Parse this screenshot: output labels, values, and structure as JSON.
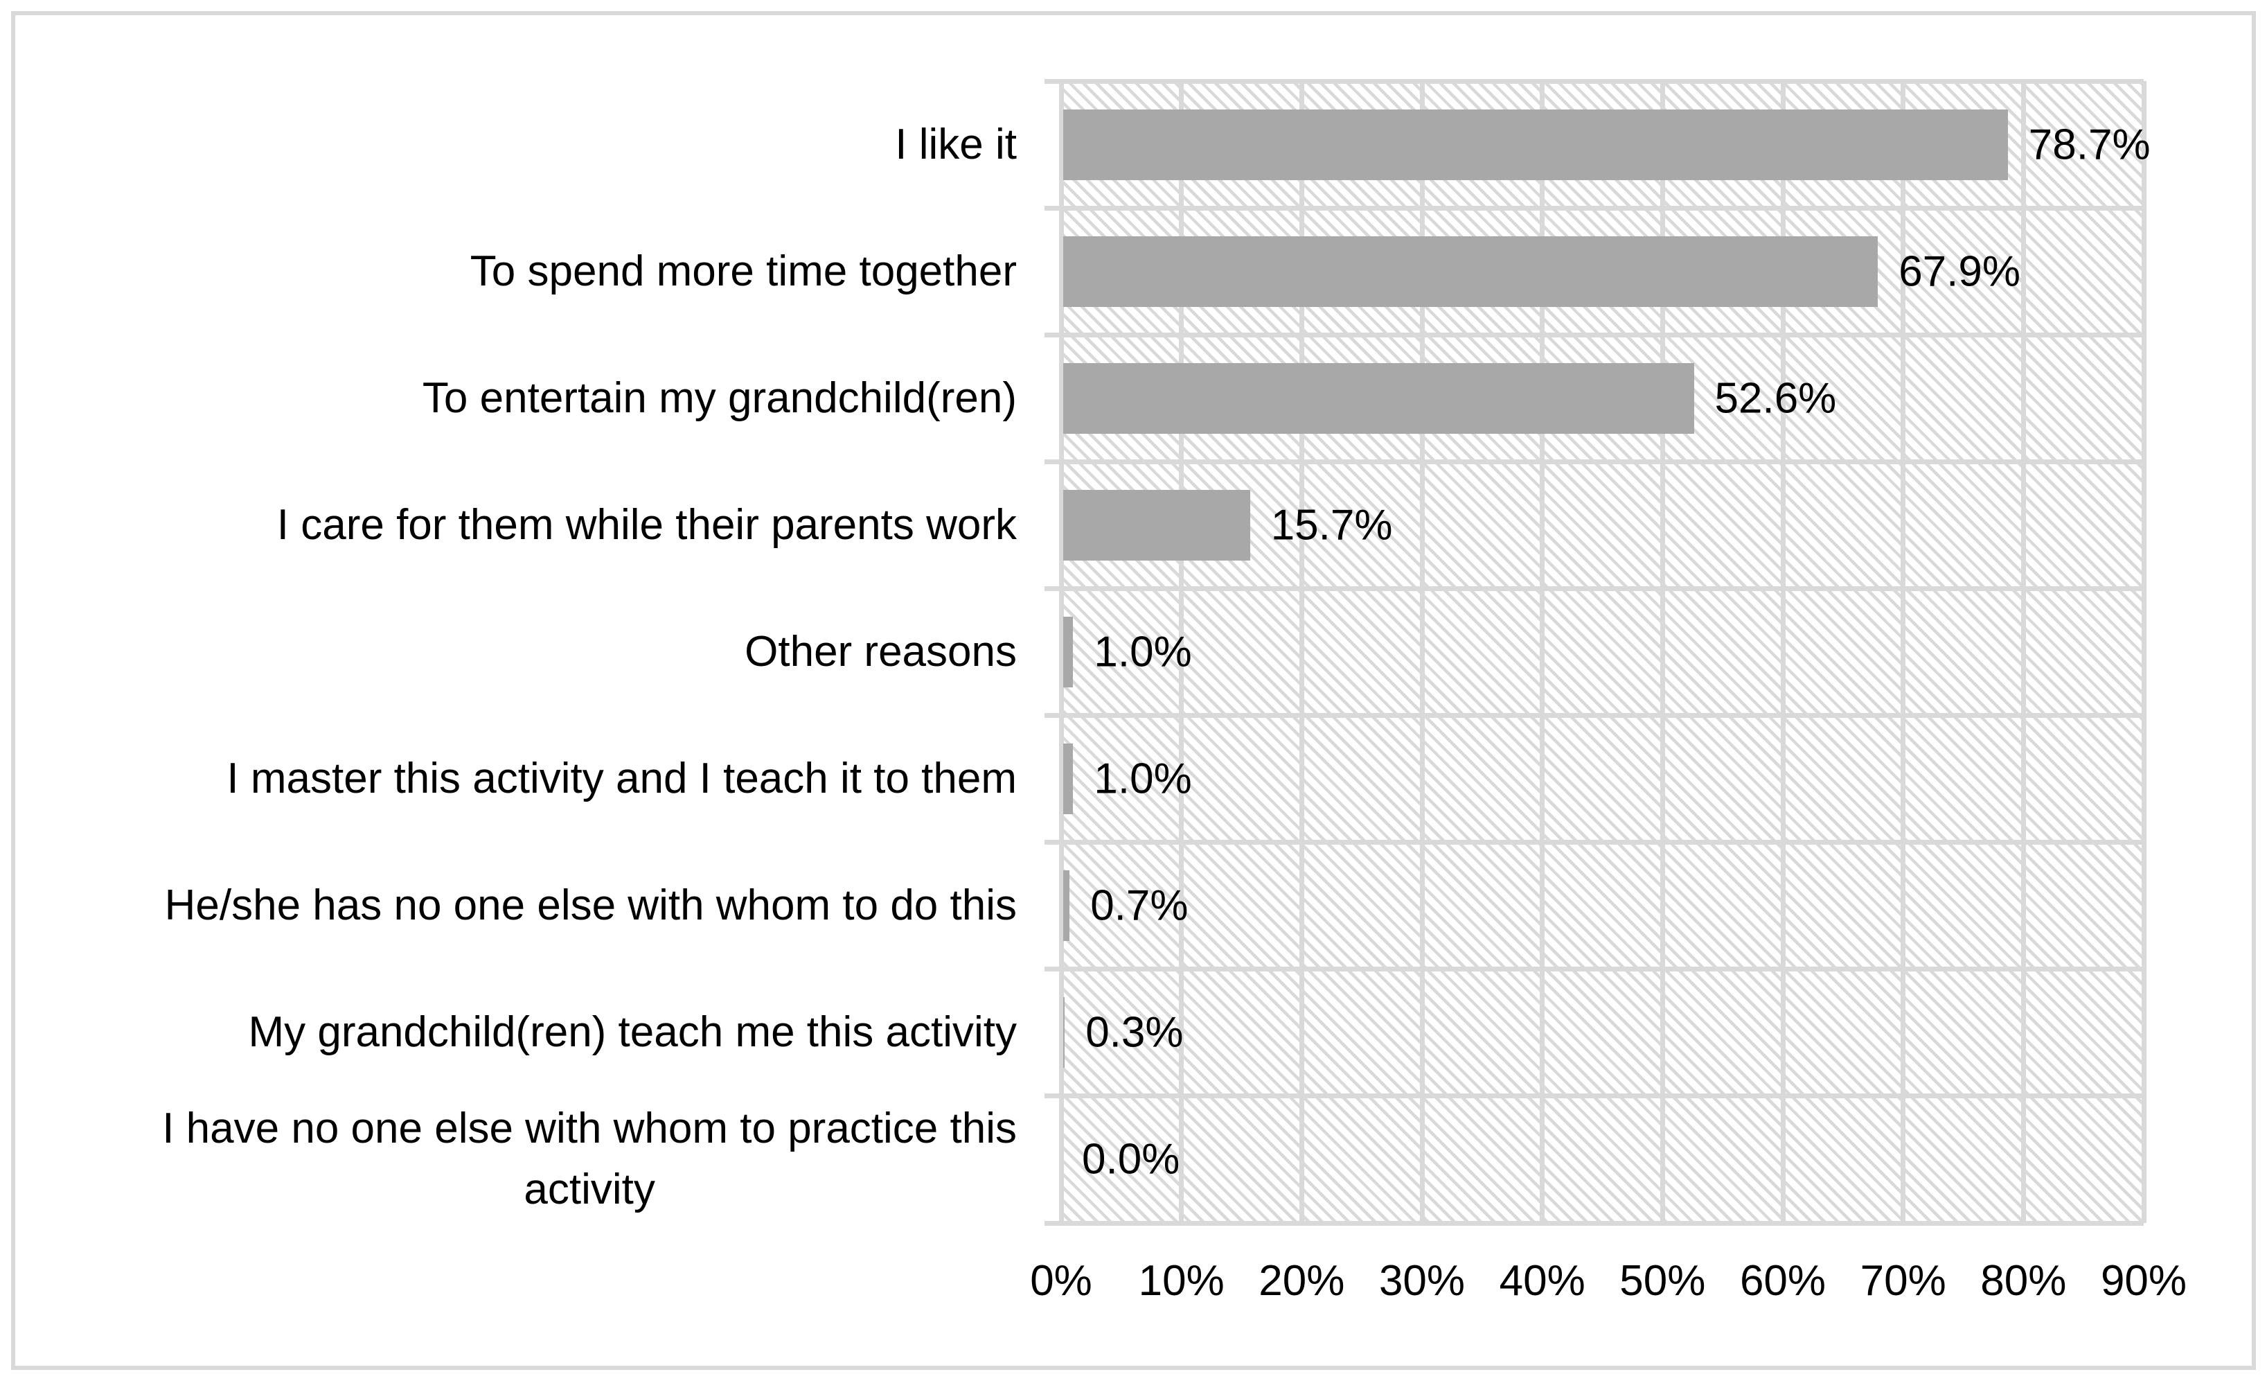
{
  "chart_data": {
    "type": "bar",
    "orientation": "horizontal",
    "title": "",
    "categories": [
      "I like it",
      "To spend more time together",
      "To entertain my grandchild(ren)",
      "I care for them while their parents work",
      "Other reasons",
      "I master this activity and I teach it to them",
      "He/she has no one else with whom to do this",
      "My grandchild(ren) teach me this activity",
      "I have no one else with whom to practice this\nactivity"
    ],
    "values": [
      78.7,
      67.9,
      52.6,
      15.7,
      1.0,
      1.0,
      0.7,
      0.3,
      0.0
    ],
    "value_labels": [
      "78.7%",
      "67.9%",
      "52.6%",
      "15.7%",
      "1.0%",
      "1.0%",
      "0.7%",
      "0.3%",
      "0.0%"
    ],
    "x_axis": {
      "min": 0,
      "max": 90,
      "step": 10,
      "ticks": [
        "0%",
        "10%",
        "20%",
        "30%",
        "40%",
        "50%",
        "60%",
        "70%",
        "80%",
        "90%"
      ]
    },
    "legend": "none",
    "grid": true,
    "colors": {
      "bar": "#a8a8a8",
      "gridline": "#d9d9d9",
      "hatch": "#d9d9d9",
      "text": "#000000",
      "frame_border": "#d9d9d9",
      "background": "#ffffff"
    }
  }
}
